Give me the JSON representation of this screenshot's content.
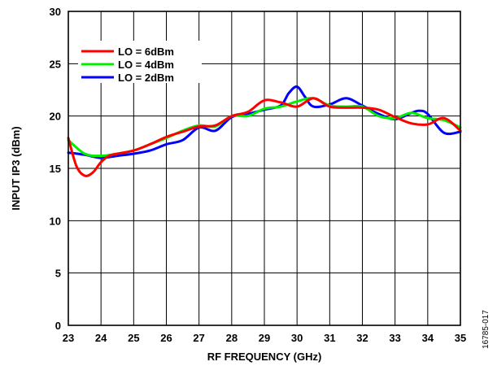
{
  "chart_data": {
    "type": "line",
    "xlabel": "RF FREQUENCY (GHz)",
    "ylabel": "INPUT IP3 (dBm)",
    "xlim": [
      23,
      35
    ],
    "ylim": [
      0,
      30
    ],
    "xticks": [
      23,
      24,
      25,
      26,
      27,
      28,
      29,
      30,
      31,
      32,
      33,
      34,
      35
    ],
    "yticks": [
      0,
      5,
      10,
      15,
      20,
      25,
      30
    ],
    "grid": true,
    "legend_position": "top-left",
    "figure_id": "16785-017",
    "series": [
      {
        "name": "LO = 6dBm",
        "color": "#ff0000",
        "x": [
          23,
          23.25,
          23.5,
          23.75,
          24,
          24.25,
          24.5,
          25,
          25.5,
          26,
          26.5,
          27,
          27.5,
          28,
          28.5,
          29,
          29.5,
          30,
          30.5,
          31,
          31.5,
          32,
          32.5,
          33,
          33.5,
          34,
          34.5,
          35
        ],
        "y": [
          17.9,
          15.2,
          14.3,
          14.6,
          15.6,
          16.2,
          16.4,
          16.7,
          17.3,
          18.0,
          18.5,
          19.0,
          19.1,
          20.0,
          20.4,
          21.5,
          21.3,
          20.9,
          21.7,
          20.9,
          20.8,
          20.8,
          20.6,
          19.9,
          19.3,
          19.2,
          19.8,
          18.6
        ]
      },
      {
        "name": "LO = 4dBm",
        "color": "#00ee00",
        "x": [
          23,
          23.5,
          24,
          24.5,
          25,
          25.5,
          26,
          26.5,
          27,
          27.5,
          28,
          28.5,
          29,
          29.5,
          30,
          30.5,
          31,
          31.5,
          32,
          32.5,
          33,
          33.5,
          34,
          34.5,
          35
        ],
        "y": [
          17.7,
          16.4,
          16.2,
          16.4,
          16.7,
          17.3,
          17.9,
          18.6,
          19.1,
          19.0,
          20.0,
          20.0,
          20.7,
          20.9,
          21.4,
          21.7,
          21.0,
          20.9,
          20.9,
          20.0,
          19.8,
          20.3,
          19.8,
          19.6,
          18.9
        ]
      },
      {
        "name": "LO = 2dBm",
        "color": "#0000ff",
        "x": [
          23,
          23.5,
          24,
          24.5,
          25,
          25.5,
          26,
          26.5,
          27,
          27.5,
          28,
          28.5,
          29,
          29.5,
          29.75,
          30,
          30.25,
          30.5,
          31,
          31.5,
          32,
          32.5,
          33,
          33.5,
          33.75,
          34,
          34.5,
          35
        ],
        "y": [
          16.5,
          16.3,
          16.0,
          16.2,
          16.4,
          16.7,
          17.3,
          17.7,
          18.9,
          18.6,
          19.9,
          20.2,
          20.6,
          21.0,
          22.2,
          22.8,
          21.8,
          20.9,
          21.1,
          21.7,
          21.0,
          20.2,
          19.7,
          20.3,
          20.5,
          20.2,
          18.4,
          18.5
        ]
      }
    ]
  }
}
